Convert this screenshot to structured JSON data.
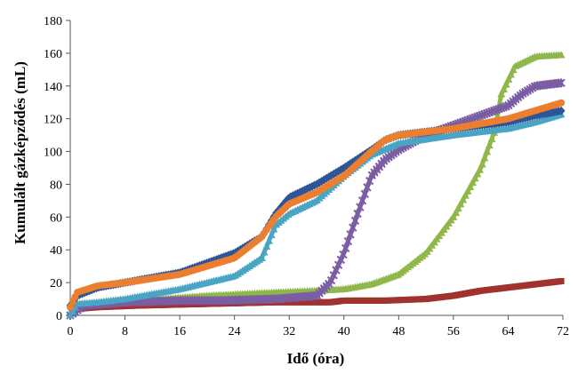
{
  "chart_data": {
    "type": "line",
    "title": "",
    "xlabel": "Idő (óra)",
    "ylabel": "Kumulált gázképződés (mL)",
    "xlim": [
      0,
      72
    ],
    "ylim": [
      0,
      180
    ],
    "xticks": [
      0,
      8,
      16,
      24,
      32,
      40,
      48,
      56,
      64,
      72
    ],
    "yticks": [
      0,
      20,
      40,
      60,
      80,
      100,
      120,
      140,
      160,
      180
    ],
    "grid": false,
    "legend": "none",
    "series": [
      {
        "name": "series-red",
        "color": "#a0322f",
        "marker": "square",
        "points": [
          [
            0,
            0
          ],
          [
            1,
            4
          ],
          [
            4,
            5
          ],
          [
            10,
            6
          ],
          [
            20,
            7
          ],
          [
            30,
            8
          ],
          [
            38,
            8
          ],
          [
            40,
            9
          ],
          [
            46,
            9
          ],
          [
            52,
            10
          ],
          [
            56,
            12
          ],
          [
            60,
            15
          ],
          [
            64,
            17
          ],
          [
            68,
            19
          ],
          [
            72,
            21
          ]
        ]
      },
      {
        "name": "series-green",
        "color": "#8fb74a",
        "marker": "triangle",
        "points": [
          [
            0,
            0
          ],
          [
            1,
            6
          ],
          [
            4,
            7
          ],
          [
            10,
            9
          ],
          [
            20,
            12
          ],
          [
            30,
            14
          ],
          [
            36,
            15
          ],
          [
            40,
            16
          ],
          [
            44,
            19
          ],
          [
            48,
            25
          ],
          [
            52,
            38
          ],
          [
            56,
            60
          ],
          [
            58,
            75
          ],
          [
            60,
            90
          ],
          [
            62,
            112
          ],
          [
            63,
            135
          ],
          [
            65,
            152
          ],
          [
            68,
            158
          ],
          [
            72,
            159
          ]
        ]
      },
      {
        "name": "series-purple",
        "color": "#7b5da3",
        "marker": "star",
        "points": [
          [
            0,
            0
          ],
          [
            2,
            6
          ],
          [
            8,
            8
          ],
          [
            16,
            9
          ],
          [
            22,
            9
          ],
          [
            30,
            10
          ],
          [
            36,
            12
          ],
          [
            38,
            20
          ],
          [
            40,
            38
          ],
          [
            42,
            62
          ],
          [
            44,
            85
          ],
          [
            46,
            95
          ],
          [
            48,
            101
          ],
          [
            52,
            110
          ],
          [
            56,
            116
          ],
          [
            60,
            122
          ],
          [
            64,
            128
          ],
          [
            66,
            135
          ],
          [
            68,
            140
          ],
          [
            72,
            142
          ]
        ]
      },
      {
        "name": "series-teal",
        "color": "#4aa5c4",
        "marker": "triangle",
        "points": [
          [
            0,
            0
          ],
          [
            1,
            7
          ],
          [
            4,
            8
          ],
          [
            8,
            10
          ],
          [
            16,
            16
          ],
          [
            24,
            24
          ],
          [
            28,
            35
          ],
          [
            30,
            55
          ],
          [
            32,
            62
          ],
          [
            36,
            70
          ],
          [
            40,
            85
          ],
          [
            44,
            98
          ],
          [
            48,
            105
          ],
          [
            56,
            110
          ],
          [
            64,
            114
          ],
          [
            68,
            118
          ],
          [
            72,
            123
          ]
        ]
      },
      {
        "name": "series-blue",
        "color": "#2f5597",
        "marker": "diamond",
        "points": [
          [
            0,
            6
          ],
          [
            1,
            12
          ],
          [
            4,
            17
          ],
          [
            8,
            20
          ],
          [
            16,
            26
          ],
          [
            24,
            38
          ],
          [
            28,
            48
          ],
          [
            30,
            62
          ],
          [
            32,
            72
          ],
          [
            36,
            80
          ],
          [
            40,
            90
          ],
          [
            44,
            101
          ],
          [
            46,
            107
          ],
          [
            48,
            110
          ],
          [
            56,
            114
          ],
          [
            64,
            118
          ],
          [
            68,
            122
          ],
          [
            72,
            125
          ]
        ]
      },
      {
        "name": "series-orange",
        "color": "#ec7f2f",
        "marker": "circle",
        "points": [
          [
            0,
            5
          ],
          [
            1,
            14
          ],
          [
            4,
            18
          ],
          [
            8,
            20
          ],
          [
            16,
            25
          ],
          [
            24,
            35
          ],
          [
            28,
            48
          ],
          [
            30,
            60
          ],
          [
            32,
            68
          ],
          [
            36,
            75
          ],
          [
            40,
            85
          ],
          [
            44,
            100
          ],
          [
            46,
            107
          ],
          [
            48,
            110
          ],
          [
            56,
            114
          ],
          [
            64,
            120
          ],
          [
            68,
            125
          ],
          [
            72,
            130
          ]
        ]
      }
    ]
  }
}
